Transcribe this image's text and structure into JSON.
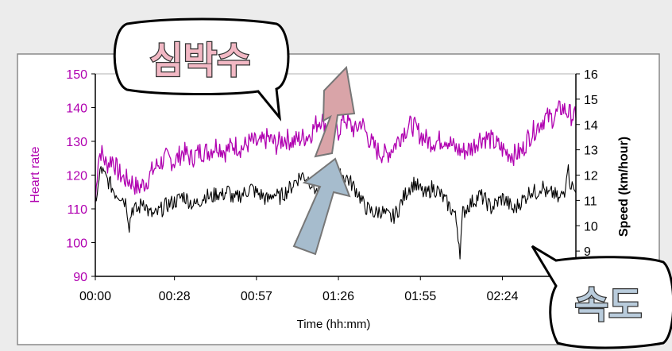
{
  "chart_data": {
    "type": "line",
    "xlabel": "Time (hh:mm)",
    "x_ticks": [
      "00:00",
      "00:28",
      "00:57",
      "01:26",
      "01:55",
      "02:24"
    ],
    "y_left": {
      "label": "Heart rate",
      "range": [
        90,
        150
      ],
      "ticks": [
        "90",
        "100",
        "110",
        "120",
        "130",
        "140",
        "150"
      ],
      "color": "#b000b0"
    },
    "y_right": {
      "label": "Speed (km/hour)",
      "range": [
        8,
        16
      ],
      "ticks": [
        "9",
        "10",
        "11",
        "12",
        "13",
        "14",
        "15",
        "16"
      ],
      "color": "#000000"
    },
    "series": [
      {
        "axis": "left",
        "color": "#b000b0",
        "points": [
          [
            0,
            112
          ],
          [
            1,
            125
          ],
          [
            2,
            127
          ],
          [
            4,
            123
          ],
          [
            6,
            125
          ],
          [
            8,
            121
          ],
          [
            10,
            119
          ],
          [
            13,
            118
          ],
          [
            15,
            116
          ],
          [
            18,
            118
          ],
          [
            20,
            121
          ],
          [
            22,
            123
          ],
          [
            25,
            125
          ],
          [
            28,
            124
          ],
          [
            31,
            127
          ],
          [
            34,
            125
          ],
          [
            37,
            127
          ],
          [
            40,
            127
          ],
          [
            43,
            129
          ],
          [
            46,
            127
          ],
          [
            49,
            129
          ],
          [
            52,
            128
          ],
          [
            55,
            130
          ],
          [
            58,
            129
          ],
          [
            61,
            131
          ],
          [
            64,
            129
          ],
          [
            67,
            131
          ],
          [
            70,
            130
          ],
          [
            73,
            131
          ],
          [
            76,
            132
          ],
          [
            78,
            135
          ],
          [
            80,
            137
          ],
          [
            82,
            134
          ],
          [
            84,
            136
          ],
          [
            86,
            133
          ],
          [
            88,
            137
          ],
          [
            90,
            135
          ],
          [
            92,
            133
          ],
          [
            94,
            136
          ],
          [
            96,
            132
          ],
          [
            98,
            129
          ],
          [
            100,
            127
          ],
          [
            103,
            126
          ],
          [
            106,
            129
          ],
          [
            109,
            133
          ],
          [
            112,
            135
          ],
          [
            115,
            132
          ],
          [
            118,
            130
          ],
          [
            121,
            130
          ],
          [
            124,
            131
          ],
          [
            127,
            128
          ],
          [
            130,
            127
          ],
          [
            133,
            128
          ],
          [
            136,
            131
          ],
          [
            139,
            131
          ],
          [
            142,
            129
          ],
          [
            145,
            127
          ],
          [
            148,
            126
          ],
          [
            151,
            127
          ],
          [
            153,
            131
          ],
          [
            156,
            134
          ],
          [
            159,
            137
          ],
          [
            162,
            137
          ],
          [
            165,
            140
          ],
          [
            168,
            138
          ],
          [
            170,
            137
          ]
        ]
      },
      {
        "axis": "right",
        "color": "#000000",
        "points": [
          [
            0,
            11.0
          ],
          [
            1,
            11.5
          ],
          [
            2,
            12.3
          ],
          [
            3,
            12.0
          ],
          [
            5,
            11.7
          ],
          [
            7,
            11.3
          ],
          [
            9,
            11.2
          ],
          [
            11,
            10.9
          ],
          [
            12,
            10.0
          ],
          [
            13,
            10.7
          ],
          [
            15,
            10.6
          ],
          [
            17,
            11.0
          ],
          [
            19,
            10.5
          ],
          [
            21,
            10.4
          ],
          [
            23,
            10.6
          ],
          [
            25,
            10.8
          ],
          [
            27,
            10.9
          ],
          [
            29,
            11.0
          ],
          [
            31,
            11.2
          ],
          [
            33,
            11.0
          ],
          [
            35,
            10.8
          ],
          [
            37,
            11.0
          ],
          [
            39,
            11.2
          ],
          [
            41,
            11.1
          ],
          [
            43,
            11.3
          ],
          [
            45,
            11.2
          ],
          [
            47,
            11.4
          ],
          [
            49,
            11.0
          ],
          [
            51,
            11.2
          ],
          [
            53,
            11.3
          ],
          [
            55,
            11.5
          ],
          [
            57,
            11.3
          ],
          [
            59,
            11.2
          ],
          [
            61,
            11.0
          ],
          [
            63,
            11.3
          ],
          [
            65,
            11.1
          ],
          [
            67,
            11.3
          ],
          [
            69,
            11.5
          ],
          [
            71,
            11.8
          ],
          [
            73,
            12.0
          ],
          [
            75,
            11.9
          ],
          [
            77,
            11.6
          ],
          [
            79,
            11.2
          ],
          [
            81,
            11.2
          ],
          [
            83,
            11.5
          ],
          [
            85,
            11.7
          ],
          [
            87,
            12.0
          ],
          [
            89,
            11.9
          ],
          [
            91,
            11.6
          ],
          [
            93,
            11.3
          ],
          [
            95,
            10.8
          ],
          [
            97,
            10.6
          ],
          [
            99,
            10.5
          ],
          [
            101,
            10.6
          ],
          [
            103,
            10.4
          ],
          [
            105,
            10.3
          ],
          [
            107,
            10.6
          ],
          [
            109,
            11.1
          ],
          [
            111,
            11.5
          ],
          [
            113,
            11.7
          ],
          [
            115,
            11.4
          ],
          [
            117,
            11.2
          ],
          [
            119,
            11.5
          ],
          [
            121,
            11.4
          ],
          [
            123,
            11.1
          ],
          [
            125,
            10.8
          ],
          [
            127,
            10.5
          ],
          [
            128,
            10.0
          ],
          [
            129,
            9.0
          ],
          [
            130,
            10.5
          ],
          [
            132,
            10.8
          ],
          [
            134,
            11.0
          ],
          [
            136,
            11.2
          ],
          [
            138,
            11.0
          ],
          [
            140,
            10.7
          ],
          [
            142,
            10.9
          ],
          [
            144,
            11.1
          ],
          [
            146,
            10.9
          ],
          [
            148,
            10.6
          ],
          [
            150,
            10.9
          ],
          [
            152,
            11.1
          ],
          [
            154,
            11.4
          ],
          [
            156,
            11.3
          ],
          [
            158,
            11.6
          ],
          [
            160,
            11.2
          ],
          [
            162,
            11.3
          ],
          [
            164,
            11.0
          ],
          [
            166,
            11.4
          ],
          [
            167,
            12.4
          ],
          [
            168,
            11.7
          ],
          [
            170,
            11.3
          ]
        ]
      }
    ]
  },
  "callouts": {
    "heart_rate": "심박수",
    "speed": "속도"
  }
}
